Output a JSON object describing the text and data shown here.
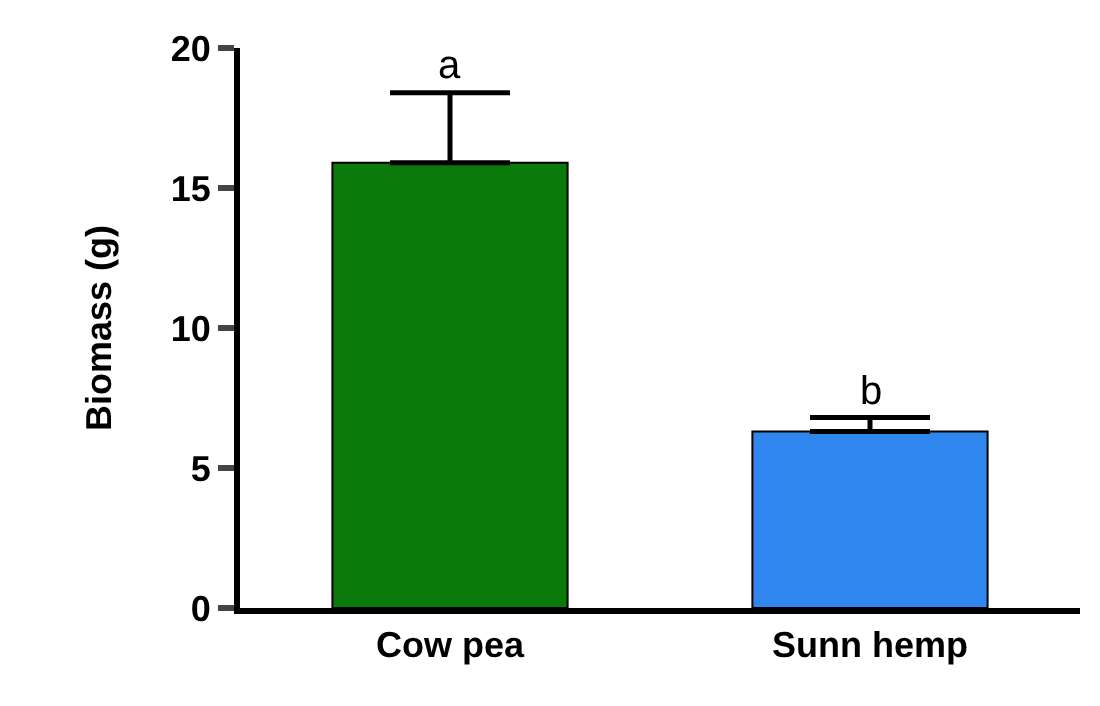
{
  "chart_data": {
    "type": "bar",
    "ylabel": "Biomass (g)",
    "categories": [
      "Cow pea",
      "Sunn hemp"
    ],
    "values": [
      15.9,
      6.3
    ],
    "colors": [
      "#0a7a0a",
      "#2f86ee"
    ],
    "errors": [
      [
        15.9,
        18.4
      ],
      [
        6.3,
        6.8
      ]
    ],
    "annotations": [
      {
        "text": "a",
        "x": "Cow pea",
        "y": 18.4
      },
      {
        "text": "b",
        "x": "Sunn hemp",
        "y": 6.8
      }
    ],
    "ylim": [
      0,
      20
    ],
    "yticks": [
      0,
      5,
      10,
      15,
      20
    ]
  }
}
